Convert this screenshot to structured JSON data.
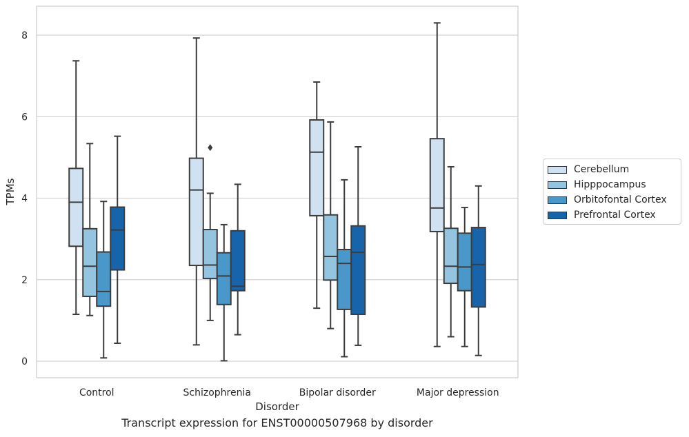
{
  "caption": "Transcript expression for ENST00000507968 by disorder",
  "legend": {
    "items": [
      {
        "label": "Cerebellum",
        "color": "#d0e1f2"
      },
      {
        "label": "Hipppocampus",
        "color": "#94c4df"
      },
      {
        "label": "Orbitofontal Cortex",
        "color": "#4a98c9"
      },
      {
        "label": "Prefrontal Cortex",
        "color": "#1764ab"
      }
    ]
  },
  "chart_data": {
    "type": "box",
    "xlabel": "Disorder",
    "ylabel": "TPMs",
    "ylim": [
      -0.4,
      8.7
    ],
    "yticks": [
      0,
      2,
      4,
      6,
      8
    ],
    "categories": [
      "Control",
      "Schizophrenia",
      "Bipolar disorder",
      "Major depression"
    ],
    "grid": "horizontal",
    "legend_position": "right",
    "series": [
      {
        "name": "Cerebellum",
        "color": "#d0e1f2",
        "boxes": [
          {
            "whislo": 1.15,
            "q1": 2.82,
            "med": 3.9,
            "q3": 4.73,
            "whishi": 7.37,
            "fliers": []
          },
          {
            "whislo": 0.4,
            "q1": 2.35,
            "med": 4.2,
            "q3": 4.98,
            "whishi": 7.93,
            "fliers": []
          },
          {
            "whislo": 1.3,
            "q1": 3.57,
            "med": 5.13,
            "q3": 5.92,
            "whishi": 6.85,
            "fliers": []
          },
          {
            "whislo": 0.36,
            "q1": 3.18,
            "med": 3.76,
            "q3": 5.46,
            "whishi": 8.3,
            "fliers": []
          }
        ]
      },
      {
        "name": "Hipppocampus",
        "color": "#94c4df",
        "boxes": [
          {
            "whislo": 1.12,
            "q1": 1.59,
            "med": 2.33,
            "q3": 3.25,
            "whishi": 5.34,
            "fliers": []
          },
          {
            "whislo": 1.0,
            "q1": 2.03,
            "med": 2.36,
            "q3": 3.23,
            "whishi": 4.12,
            "fliers": [
              5.24
            ]
          },
          {
            "whislo": 0.8,
            "q1": 1.99,
            "med": 2.57,
            "q3": 3.59,
            "whishi": 5.87,
            "fliers": []
          },
          {
            "whislo": 0.6,
            "q1": 1.91,
            "med": 2.33,
            "q3": 3.26,
            "whishi": 4.77,
            "fliers": []
          }
        ]
      },
      {
        "name": "Orbitofontal Cortex",
        "color": "#4a98c9",
        "boxes": [
          {
            "whislo": 0.08,
            "q1": 1.35,
            "med": 1.71,
            "q3": 2.68,
            "whishi": 3.92,
            "fliers": []
          },
          {
            "whislo": 0.01,
            "q1": 1.39,
            "med": 2.09,
            "q3": 2.66,
            "whishi": 3.35,
            "fliers": []
          },
          {
            "whislo": 0.11,
            "q1": 1.27,
            "med": 2.4,
            "q3": 2.74,
            "whishi": 4.45,
            "fliers": []
          },
          {
            "whislo": 0.36,
            "q1": 1.73,
            "med": 2.31,
            "q3": 3.14,
            "whishi": 3.77,
            "fliers": []
          }
        ]
      },
      {
        "name": "Prefrontal Cortex",
        "color": "#1764ab",
        "boxes": [
          {
            "whislo": 0.44,
            "q1": 2.24,
            "med": 3.22,
            "q3": 3.78,
            "whishi": 5.52,
            "fliers": []
          },
          {
            "whislo": 0.65,
            "q1": 1.73,
            "med": 1.84,
            "q3": 3.2,
            "whishi": 4.34,
            "fliers": []
          },
          {
            "whislo": 0.39,
            "q1": 1.15,
            "med": 2.67,
            "q3": 3.32,
            "whishi": 5.26,
            "fliers": []
          },
          {
            "whislo": 0.14,
            "q1": 1.33,
            "med": 2.37,
            "q3": 3.28,
            "whishi": 4.3,
            "fliers": []
          }
        ]
      }
    ]
  }
}
